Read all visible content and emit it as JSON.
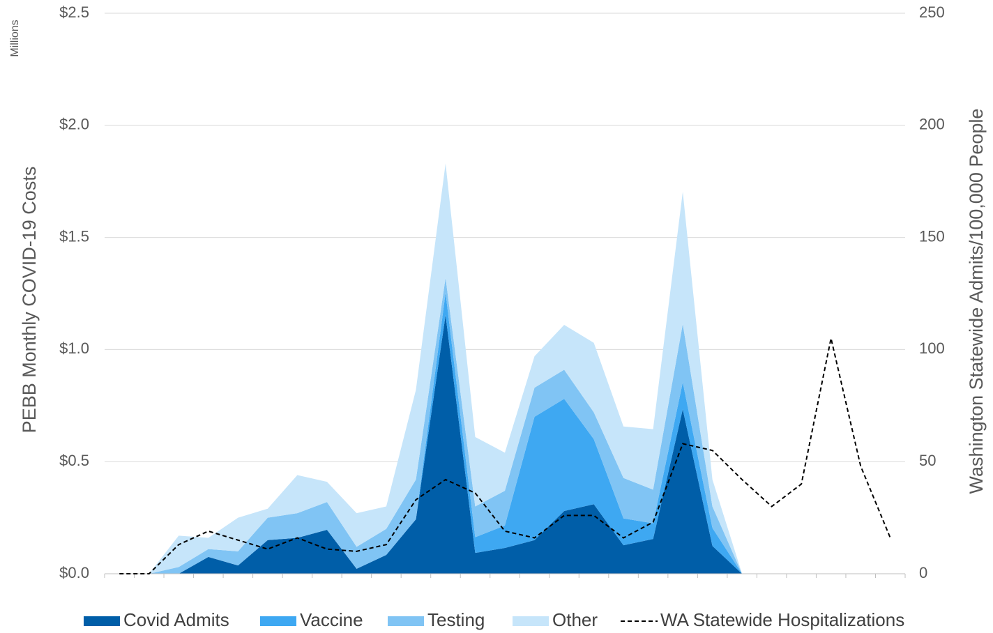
{
  "chart_data": {
    "type": "area",
    "unit_label": "Millions",
    "y_label": "PEBB Monthly COVID-19 Costs",
    "y2_label": "Washington Statewide Admits/100,000 People",
    "categories": [
      null,
      null,
      null,
      null,
      null,
      null,
      null,
      null,
      null,
      null,
      null,
      null,
      null,
      null,
      null,
      null,
      null,
      null,
      null,
      null,
      null,
      null,
      null,
      null,
      null,
      null,
      null
    ],
    "ylim": [
      0,
      2.5
    ],
    "yticks": [
      {
        "value": 0,
        "label": "$0.0"
      },
      {
        "value": 0.5,
        "label": "$0.5"
      },
      {
        "value": 1,
        "label": "$1.0"
      },
      {
        "value": 1.5,
        "label": "$1.5"
      },
      {
        "value": 2,
        "label": "$2.0"
      },
      {
        "value": 2.5,
        "label": "$2.5"
      }
    ],
    "y2lim": [
      0,
      250
    ],
    "y2ticks": [
      0,
      50,
      100,
      150,
      200,
      250
    ],
    "grid": true,
    "stacked": true,
    "legend": "bottom",
    "series": [
      {
        "name": "Covid Admits",
        "color": "#005ea8",
        "values": [
          0,
          0,
          0,
          0.075,
          0.037,
          0.15,
          0.16,
          0.196,
          0.022,
          0.084,
          0.243,
          1.154,
          0.093,
          0.115,
          0.15,
          0.28,
          0.31,
          0.127,
          0.155,
          0.734,
          0.124,
          0,
          null,
          null,
          null,
          null,
          null
        ]
      },
      {
        "name": "Vaccine",
        "color": "#3ea8f2",
        "values": [
          0,
          0,
          0,
          0,
          0,
          0,
          0,
          0,
          0,
          0,
          0,
          0.1,
          0.07,
          0.1,
          0.55,
          0.5,
          0.29,
          0.12,
          0.07,
          0.12,
          0.08,
          0,
          null,
          null,
          null,
          null,
          null
        ]
      },
      {
        "name": "Testing",
        "color": "#80c4f4",
        "values": [
          0,
          0,
          0.03,
          0.035,
          0.063,
          0.1,
          0.11,
          0.124,
          0.098,
          0.116,
          0.177,
          0.066,
          0.137,
          0.155,
          0.13,
          0.13,
          0.12,
          0.18,
          0.15,
          0.26,
          0.096,
          0,
          null,
          null,
          null,
          null,
          null
        ]
      },
      {
        "name": "Other",
        "color": "#c6e5fa",
        "values": [
          0,
          0,
          0.14,
          0.05,
          0.15,
          0.04,
          0.17,
          0.09,
          0.15,
          0.1,
          0.4,
          0.51,
          0.31,
          0.17,
          0.14,
          0.2,
          0.31,
          0.23,
          0.27,
          0.59,
          0.12,
          0,
          null,
          null,
          null,
          null,
          null
        ]
      },
      {
        "name": "WA Statewide Hospitalizations",
        "color": "#000000",
        "type": "line",
        "dashed": true,
        "axis": "y2",
        "values": [
          0,
          0,
          13,
          19,
          15,
          11,
          16,
          11,
          10,
          13,
          33,
          42,
          36,
          19,
          16,
          26,
          26,
          16,
          23,
          58,
          55,
          42,
          30,
          40,
          105,
          48,
          16
        ]
      }
    ]
  }
}
